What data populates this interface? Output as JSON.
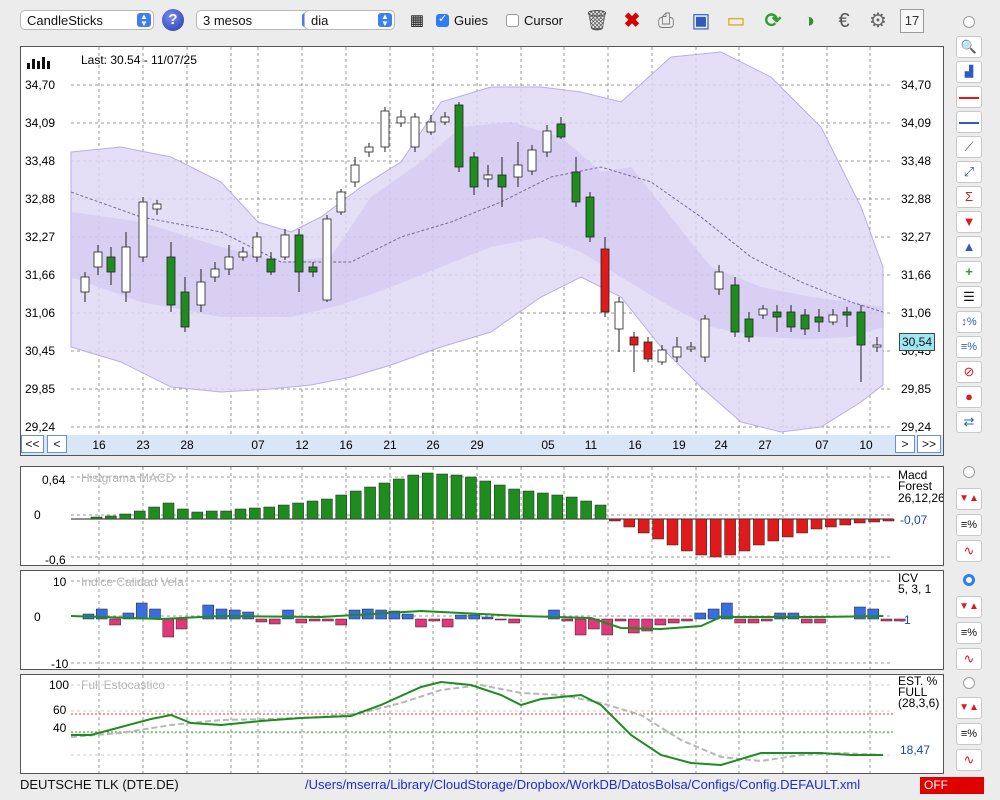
{
  "toolbar": {
    "chart_type": "CandleSticks",
    "period": "3 mesos",
    "interval": "dia",
    "guides_label": "Guies",
    "cursor_label": "Cursor",
    "guides_checked": true,
    "cursor_checked": false
  },
  "main_chart": {
    "last_label": "Last: 30.54 - 11/07/25",
    "price_badge": "30,54",
    "y_ticks": [
      "34,70",
      "34,09",
      "33,48",
      "32,88",
      "32,27",
      "31,66",
      "31,06",
      "30,45",
      "29,85",
      "29,24"
    ],
    "x_ticks": [
      "16",
      "23",
      "28",
      "07",
      "12",
      "16",
      "21",
      "26",
      "29",
      "05",
      "11",
      "16",
      "19",
      "24",
      "27",
      "07",
      "10"
    ],
    "nav_first": "<<",
    "nav_prev": "<",
    "nav_next": ">",
    "nav_last": ">>"
  },
  "macd": {
    "title": "Histgrama MACD",
    "name": "Macd",
    "name2": "Forest",
    "params": "26,12,26",
    "value": "-0,07",
    "y_ticks": [
      "0,64",
      "0",
      "-0,6"
    ]
  },
  "icv": {
    "title": "Indice Calidad Vela",
    "name": "ICV",
    "params": "5, 3, 1",
    "value": "-1",
    "y_ticks": [
      "10",
      "0",
      "-10"
    ]
  },
  "stoch": {
    "title": "Full Estocastico",
    "name": "EST. %",
    "name2": "FULL",
    "params": "(28,3,6)",
    "value": "18,47",
    "y_ticks": [
      "100",
      "60",
      "40"
    ]
  },
  "status": {
    "symbol": "DEUTSCHE TLK (DTE.DE)",
    "path": "/Users/mserra/Library/CloudStorage/Dropbox/WorkDB/DatosBolsa/Configs/Config.DEFAULT.xml",
    "off_label": "OFF"
  },
  "colors": {
    "up": "#1f8c1f",
    "down": "#e0191b",
    "band": "#ddd6f5",
    "badge": "#9ee6f0"
  },
  "icons": {
    "toolbar": [
      "calendar-grid-icon",
      "trash-icon",
      "delete-icon",
      "print-icon",
      "save-icon",
      "open-folder-icon",
      "refresh-icon",
      "sync-icon",
      "euro-icon",
      "gear-icon",
      "calendar-icon"
    ],
    "side": [
      "zoom-icon",
      "chart-add-icon",
      "horizontal-red-line-icon",
      "horizontal-blue-line-icon",
      "fibonacci-icon",
      "trendline-icon",
      "sigma-icon",
      "arrow-down-icon",
      "arrow-up-icon",
      "add-indicator-icon",
      "grid-lines-icon",
      "percent-range-icon",
      "percent-lines-icon",
      "stop-icon",
      "record-icon",
      "swap-icon"
    ]
  }
}
